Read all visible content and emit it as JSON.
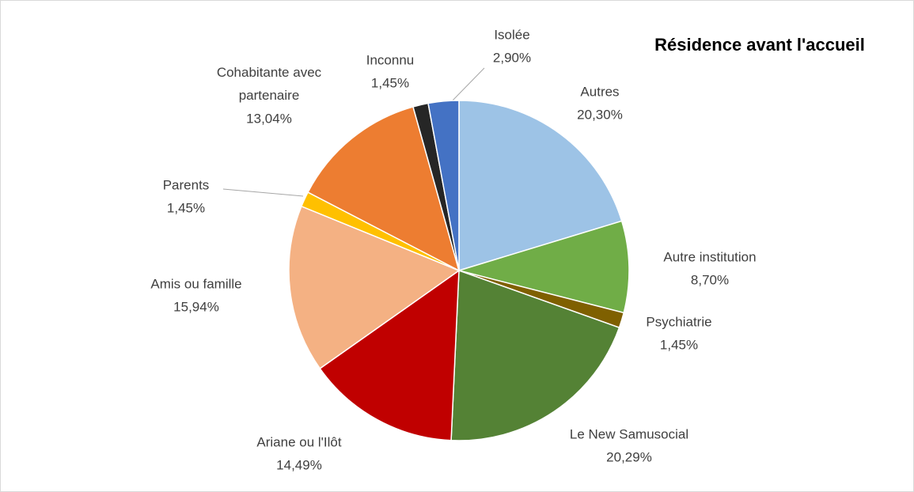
{
  "chart_data": {
    "type": "pie",
    "title": "Résidence avant l'accueil",
    "categories": [
      "Autres",
      "Autre institution",
      "Psychiatrie",
      "Le New Samusocial",
      "Ariane ou l'Ilôt",
      "Amis ou famille",
      "Parents",
      "Cohabitante avec partenaire",
      "Inconnu",
      "Isolée"
    ],
    "values": [
      20.3,
      8.7,
      1.45,
      20.29,
      14.49,
      15.94,
      1.45,
      13.04,
      1.45,
      2.9
    ],
    "value_labels": [
      "20,30%",
      "8,70%",
      "1,45%",
      "20,29%",
      "14,49%",
      "15,94%",
      "1,45%",
      "13,04%",
      "1,45%",
      "2,90%"
    ],
    "colors": [
      "#9dc3e6",
      "#70ad47",
      "#7f6000",
      "#548235",
      "#c00000",
      "#f4b183",
      "#ffc000",
      "#ed7d31",
      "#262626",
      "#4472c4"
    ]
  }
}
